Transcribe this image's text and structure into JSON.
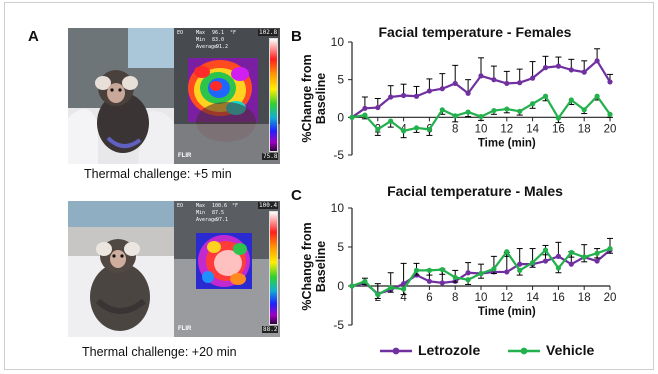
{
  "panels": {
    "a_label": "A",
    "b_label": "B",
    "c_label": "C",
    "a_top_caption": "Thermal challenge: +5 min",
    "a_bottom_caption": "Thermal challenge: +20 min"
  },
  "thermal_top": {
    "mode": "EO",
    "max_label": "Max",
    "max_value": "96.1",
    "min_label": "Min",
    "min_value": "83.0",
    "avg_label": "Average",
    "avg_value": "91.2",
    "unit": "°F",
    "scale_top": "102.8",
    "scale_bottom": "75.8",
    "brand": "FLIR"
  },
  "thermal_bottom": {
    "mode": "EO",
    "max_label": "Max",
    "max_value": "100.6",
    "min_label": "Min",
    "min_value": "87.5",
    "avg_label": "Average",
    "avg_value": "97.1",
    "unit": "°F",
    "scale_top": "100.4",
    "scale_bottom": "88.2",
    "brand": "FLIR"
  },
  "colors": {
    "letrozole": "#7030a0",
    "vehicle": "#22b14c",
    "errorbar": "#000000"
  },
  "legend": {
    "letrozole": "Letrozole",
    "vehicle": "Vehicle"
  },
  "chart_data": [
    {
      "type": "line",
      "title": "Facial temperature  - Females",
      "xlabel": "Time (min)",
      "ylabel": "%Change from\nBaseline",
      "xlim": [
        0,
        20
      ],
      "ylim": [
        -5,
        10
      ],
      "xticks": [
        2,
        4,
        6,
        8,
        10,
        12,
        14,
        16,
        18,
        20
      ],
      "yticks": [
        -5,
        0,
        5,
        10
      ],
      "x": [
        0,
        1,
        2,
        3,
        4,
        5,
        6,
        7,
        8,
        9,
        10,
        11,
        12,
        13,
        14,
        15,
        16,
        17,
        18,
        19,
        20
      ],
      "series": [
        {
          "name": "Letrozole",
          "color": "#7030a0",
          "values": [
            0,
            1.2,
            1.3,
            2.7,
            2.9,
            2.8,
            3.5,
            3.8,
            4.5,
            3.2,
            5.5,
            5.0,
            4.5,
            4.6,
            5.2,
            6.6,
            6.8,
            6.3,
            6.0,
            7.5,
            4.7
          ],
          "err": [
            0,
            1.5,
            1.2,
            1.5,
            1.5,
            1.3,
            1.6,
            2.0,
            2.4,
            1.8,
            2.4,
            1.8,
            1.6,
            1.8,
            2.2,
            1.5,
            1.2,
            1.4,
            1.5,
            1.6,
            1.0
          ]
        },
        {
          "name": "Vehicle",
          "color": "#22b14c",
          "values": [
            0,
            0.3,
            -1.6,
            -0.5,
            -1.8,
            -1.4,
            -1.6,
            1.0,
            0.2,
            0.7,
            0.1,
            0.9,
            1.1,
            0.8,
            1.8,
            2.8,
            -0.1,
            2.3,
            1.0,
            2.8,
            0.4
          ],
          "err": [
            0,
            0.5,
            0.8,
            0.8,
            0.9,
            0.6,
            0.8,
            0.6,
            0.8,
            0.6,
            0.5,
            0.5,
            0.5,
            0.5,
            0.6,
            0.6,
            0.6,
            0.6,
            0.5,
            0.5,
            0.4
          ]
        }
      ]
    },
    {
      "type": "line",
      "title": "Facial temperature  - Males",
      "xlabel": "Time (min)",
      "ylabel": "%Change from\nBaseline",
      "xlim": [
        0,
        20
      ],
      "ylim": [
        -5,
        10
      ],
      "xticks": [
        2,
        4,
        6,
        8,
        10,
        12,
        14,
        16,
        18,
        20
      ],
      "yticks": [
        -5,
        0,
        5,
        10
      ],
      "x": [
        0,
        1,
        2,
        3,
        4,
        5,
        6,
        7,
        8,
        9,
        10,
        11,
        12,
        13,
        14,
        15,
        16,
        17,
        18,
        19,
        20
      ],
      "series": [
        {
          "name": "Letrozole",
          "color": "#7030a0",
          "values": [
            0,
            0.4,
            -1.0,
            -0.5,
            0.3,
            1.4,
            0.6,
            0.4,
            0.6,
            1.7,
            1.6,
            1.8,
            1.8,
            2.8,
            2.8,
            3.2,
            3.8,
            2.8,
            3.7,
            3.2,
            4.6
          ],
          "err": [
            0,
            0.6,
            1.3,
            2.2,
            2.6,
            1.5,
            1.5,
            1.8,
            1.4,
            1.3,
            1.2,
            2.0,
            2.5,
            2.0,
            2.0,
            2.0,
            1.8,
            1.6,
            1.6,
            1.6,
            1.5
          ]
        },
        {
          "name": "Vehicle",
          "color": "#22b14c",
          "values": [
            0,
            0.6,
            -1.1,
            -0.2,
            -0.4,
            2.0,
            2.0,
            2.1,
            1.1,
            0.8,
            1.6,
            2.2,
            4.4,
            2.0,
            3.0,
            4.6,
            2.3,
            4.3,
            3.7,
            4.2,
            4.8
          ],
          "err": [
            0,
            0.4,
            0.5,
            0.6,
            0.7,
            0.6,
            0.6,
            0.6,
            0.6,
            0.6,
            0.6,
            0.6,
            0.6,
            0.6,
            0.6,
            0.6,
            0.6,
            0.6,
            0.6,
            0.6,
            0.6
          ]
        }
      ]
    }
  ]
}
